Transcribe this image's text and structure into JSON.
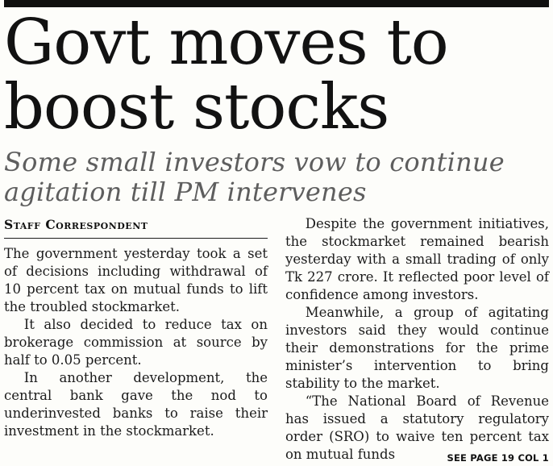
{
  "page": {
    "background_color": "#fdfdfa",
    "top_bar_color": "#101010",
    "headline_color": "#121212",
    "subheadline_color": "#5e5e5e",
    "body_text_color": "#1b1b1b"
  },
  "article": {
    "headline": "Govt moves to boost stocks",
    "headline_lines": [
      "Govt moves to",
      "boost stocks"
    ],
    "subheadline": "Some small investors vow to continue agitation till PM intervenes",
    "subheadline_lines": [
      "Some small investors vow to continue",
      "agitation till PM intervenes"
    ],
    "byline": "Staff Correspondent",
    "body": {
      "left_column": [
        "The government yesterday took a set of decisions including withdrawal of 10 percent tax on mutual funds to lift the troubled stockmarket.",
        "It also decided to reduce tax on brokerage commission at source by half to 0.05 percent.",
        "In another development, the central bank gave the nod to underinvested banks to raise their investment in the stockmarket."
      ],
      "right_column": [
        "Despite the government initiatives, the stockmarket remained bearish yesterday with a small trading of only Tk 227 crore. It reflected poor level of confidence among investors.",
        "Meanwhile, a group of agitating investors said they would continue their demonstrations for the prime minister’s intervention to bring stability to the market.",
        "“The National Board of Revenue has issued a statutory regulatory order (SRO) to waive ten percent tax on mutual funds"
      ]
    },
    "continuation": "SEE PAGE 19 COL 1"
  }
}
